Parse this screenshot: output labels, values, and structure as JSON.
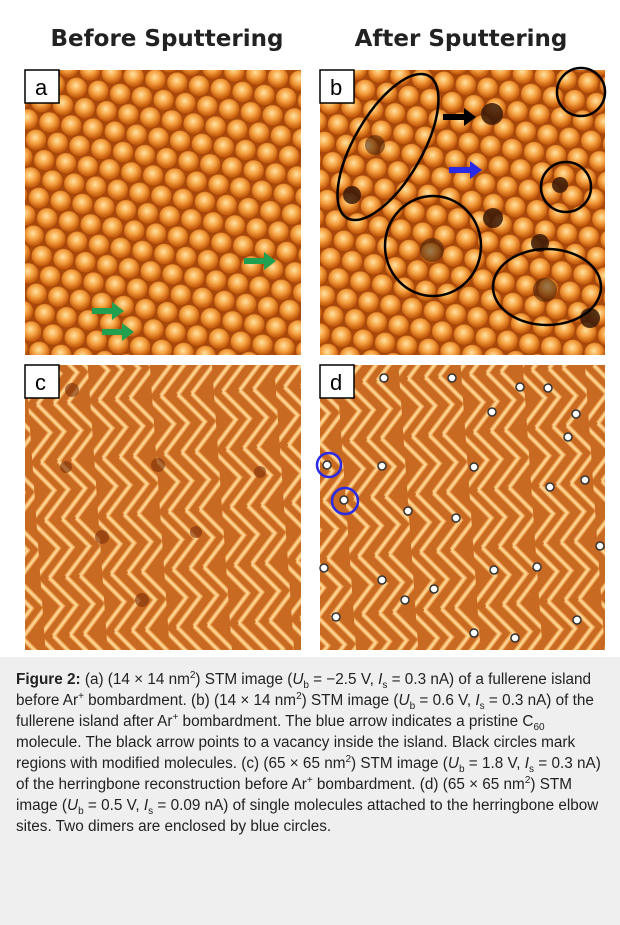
{
  "figure": {
    "headers": [
      "Before Sputtering",
      "After Sputtering"
    ],
    "panel_labels": [
      "a",
      "b",
      "c",
      "d"
    ],
    "caption": [
      "Figure 2:",
      " (a) (14 × 14 nm",
      "2",
      ") STM image (",
      "U",
      "b",
      " = −2.5 V, ",
      "I",
      "s",
      " = 0.3 nA) of a fullerene island before Ar",
      "+",
      " bombardment. (b) (14 × 14 nm",
      "2",
      ") STM image (",
      "U",
      "b",
      " = 0.6 V, ",
      "I",
      "s",
      " = 0.3 nA) of the fullerene island after Ar",
      "+",
      " bombardment. The blue arrow indicates a pristine C",
      "60",
      " molecule. The black arrow points to a vacancy inside the island. Black circles mark regions with modified molecules. (c) (65 × 65 nm",
      "2",
      ") STM image (",
      "U",
      "b",
      " = 1.8 V, ",
      "I",
      "s",
      " = 0.3 nA) of the herringbone reconstruction before Ar",
      "+",
      " bombardment. (d) (65 × 65 nm",
      "2",
      ") STM image (",
      "U",
      "b",
      " = 0.5 V, ",
      "I",
      "s",
      " = 0.09 nA) of single molecules attached to the herringbone elbow sites. Two dimers are enclosed by blue circles."
    ]
  }
}
